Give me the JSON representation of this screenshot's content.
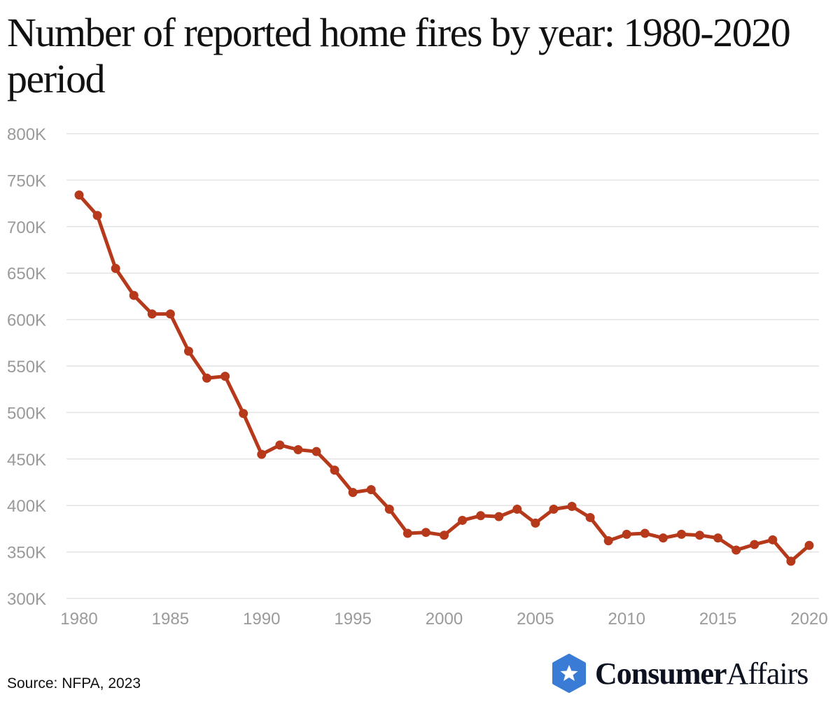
{
  "title": "Number of reported home fires by year: 1980-2020 period",
  "source": "Source: NFPA, 2023",
  "logo": {
    "bold": "Consumer",
    "regular": "Affairs",
    "icon": "star-hexagon-icon",
    "color": "#3a7bd5"
  },
  "colors": {
    "line": "#b5391a",
    "grid": "#e3e3e3",
    "tick": "#9a9a9a"
  },
  "chart_data": {
    "type": "line",
    "title": "Number of reported home fires by year: 1980-2020 period",
    "xlabel": "",
    "ylabel": "",
    "xlim": [
      1980,
      2020
    ],
    "ylim": [
      300000,
      800000
    ],
    "grid": true,
    "x_ticks": [
      1980,
      1985,
      1990,
      1995,
      2000,
      2005,
      2010,
      2015,
      2020
    ],
    "y_ticks": [
      300000,
      350000,
      400000,
      450000,
      500000,
      550000,
      600000,
      650000,
      700000,
      750000,
      800000
    ],
    "y_tick_labels": [
      "300K",
      "350K",
      "400K",
      "450K",
      "500K",
      "550K",
      "600K",
      "650K",
      "700K",
      "750K",
      "800K"
    ],
    "series": [
      {
        "name": "Reported home fires",
        "x": [
          1980,
          1981,
          1982,
          1983,
          1984,
          1985,
          1986,
          1987,
          1988,
          1989,
          1990,
          1991,
          1992,
          1993,
          1994,
          1995,
          1996,
          1997,
          1998,
          1999,
          2000,
          2001,
          2002,
          2003,
          2004,
          2005,
          2006,
          2007,
          2008,
          2009,
          2010,
          2011,
          2012,
          2013,
          2014,
          2015,
          2016,
          2017,
          2018,
          2019,
          2020
        ],
        "values": [
          734000,
          712000,
          655000,
          626000,
          606000,
          606000,
          566000,
          537000,
          539000,
          499000,
          455000,
          465000,
          460000,
          458000,
          438000,
          414000,
          417000,
          396000,
          370000,
          371000,
          368000,
          384000,
          389000,
          388000,
          396000,
          381000,
          396000,
          399000,
          387000,
          362000,
          369000,
          370000,
          365000,
          369000,
          368000,
          365000,
          352000,
          358000,
          363000,
          340000,
          357000
        ]
      }
    ]
  }
}
